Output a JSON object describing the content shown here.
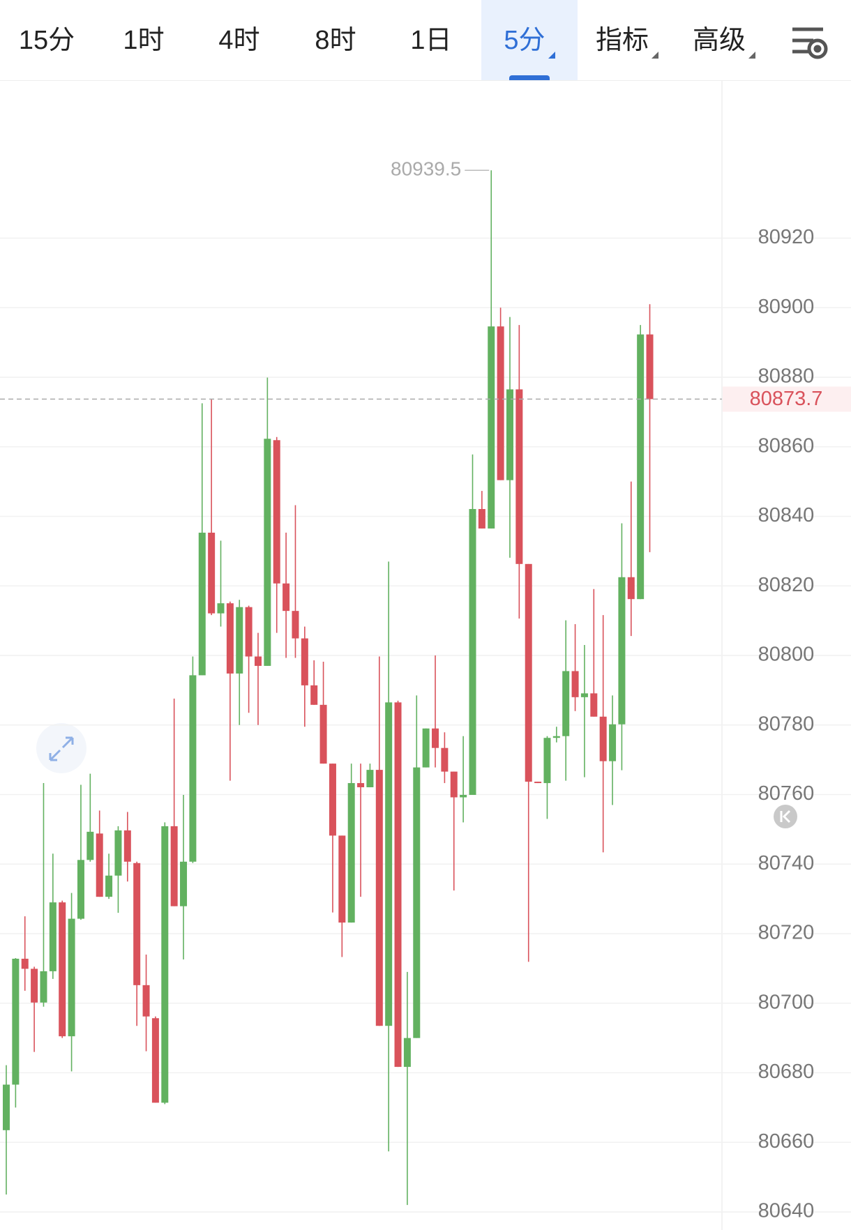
{
  "tabs": {
    "items": [
      "15分",
      "1时",
      "4时",
      "8时",
      "1日",
      "5分",
      "指标",
      "高级"
    ],
    "active": 5
  },
  "chart_data": {
    "type": "candlestick",
    "open": [
      80663.5,
      80676.6,
      80712.8,
      80709.9,
      80700.2,
      80709.2,
      80729,
      80690.5,
      80724.3,
      80741.2,
      80748.8,
      80730.6,
      80736.7,
      80749.7,
      80740.3,
      80705.2,
      80695.7,
      80671.4,
      80750.9,
      80727.9,
      80740.7,
      80794.3,
      80835.3,
      80812.1,
      80815,
      80794.8,
      80813.9,
      80799.7,
      80797,
      80861.9,
      80820.7,
      80812.8,
      80804.9,
      80791.4,
      80785.8,
      80768.9,
      80748.2,
      80723.2,
      80763.3,
      80762.1,
      80767.1,
      80693.5,
      80786.5,
      80681.7,
      80690,
      80767.8,
      80779,
      80773.4,
      80766.6,
      80759.2,
      80759.9,
      80842.1,
      80836.5,
      80894.6,
      80850.4,
      80876.5,
      80826.3,
      80763.7,
      80763.3,
      80776.3,
      80776.8,
      80795.5,
      80788,
      80789.1,
      80782.4,
      80769.6,
      80780.2,
      80822.5,
      80816.2,
      80892.3
    ],
    "high": [
      80682.2,
      80713,
      80725,
      80710.5,
      80763.3,
      80743,
      80729.5,
      80731.7,
      80762.8,
      80766,
      80755.4,
      80743,
      80750.9,
      80755,
      80740.7,
      80714,
      80696.2,
      80752,
      80787.6,
      80759.9,
      80799.7,
      80872.5,
      80873.6,
      80833,
      80815.5,
      80816,
      80814.3,
      80806.5,
      80879.9,
      80862.8,
      80835.3,
      80843.2,
      80808.3,
      80798.6,
      80798.2,
      80768.9,
      80748.2,
      80768.9,
      80768.9,
      80768.9,
      80799.7,
      80827,
      80787,
      80709,
      80788.5,
      80779,
      80800,
      80777.9,
      80766.6,
      80776.8,
      80857.8,
      80847.3,
      80939.5,
      80900,
      80897.3,
      80895,
      80826.3,
      80763.7,
      80776.8,
      80779.5,
      80810.1,
      80809,
      80803,
      80819.1,
      80811.6,
      80788.5,
      80838,
      80850,
      80895,
      80901
    ],
    "low": [
      80645,
      80670,
      80703.6,
      80686,
      80699,
      80707,
      80690,
      80680.4,
      80724,
      80740.7,
      80730.6,
      80730,
      80726,
      80735,
      80693.5,
      80686.2,
      80671.4,
      80671,
      80727.9,
      80712.6,
      80740.3,
      80794.3,
      80811.6,
      80808.3,
      80764,
      80780,
      80783.5,
      80780,
      80797,
      80806.5,
      80799.3,
      80799.3,
      80779.5,
      80785.8,
      80768.9,
      80726.1,
      80713.3,
      80723.2,
      80730.6,
      80762.1,
      80693.5,
      80657.4,
      80681.7,
      80642,
      80690,
      80767.8,
      80767.8,
      80763.3,
      80732.4,
      80752,
      80759.9,
      80836.5,
      80836.5,
      80850.4,
      80828.1,
      80810.6,
      80711.9,
      80763.3,
      80753,
      80775,
      80764,
      80784,
      80765,
      80782.4,
      80743.4,
      80757,
      80767,
      80805.6,
      80816.2,
      80829.7
    ],
    "close": [
      80676.6,
      80712.8,
      80709.9,
      80700.2,
      80709.2,
      80729,
      80690.5,
      80724.3,
      80741.2,
      80749.3,
      80730.6,
      80736.7,
      80749.7,
      80740.7,
      80705.2,
      80696.2,
      80671.4,
      80750.9,
      80727.9,
      80740.7,
      80794.3,
      80835.3,
      80812.1,
      80815,
      80794.8,
      80813.9,
      80799.7,
      80797,
      80862.3,
      80820.7,
      80812.8,
      80804.9,
      80791.4,
      80785.8,
      80768.9,
      80748.2,
      80723.2,
      80763.3,
      80762.1,
      80767.1,
      80693.5,
      80786.5,
      80681.7,
      80690,
      80767.8,
      80779,
      80773.4,
      80766.6,
      80759.2,
      80759.9,
      80842.1,
      80836.5,
      80894.6,
      80850.4,
      80876.5,
      80826.3,
      80763.7,
      80763.3,
      80776.3,
      80776.8,
      80795.5,
      80788,
      80789.1,
      80782.4,
      80769.6,
      80780.2,
      80822.5,
      80816.2,
      80892.3,
      80873.7
    ],
    "up_color": "#62b160",
    "down_color": "#d9525b",
    "ylim": [
      80634.8,
      80965.2
    ],
    "yticks": [
      80640,
      80660,
      80680,
      80700,
      80720,
      80740,
      80760,
      80780,
      80800,
      80820,
      80840,
      80860,
      80880,
      80900,
      80920
    ],
    "grid": true,
    "max_high": 80939.5,
    "last_price": 80873.7
  }
}
